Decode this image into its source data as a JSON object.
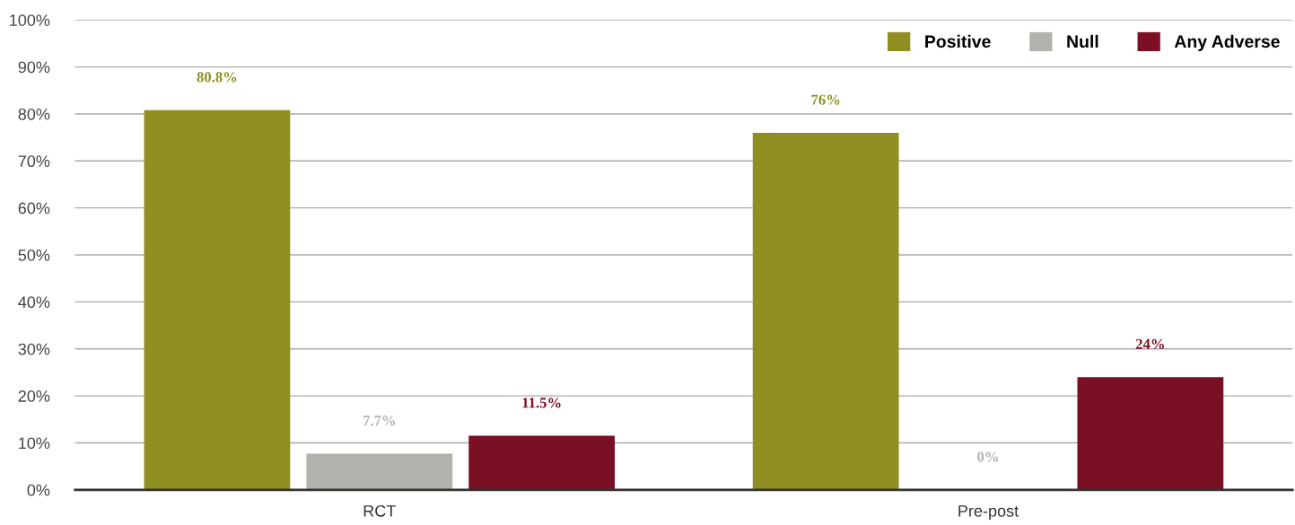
{
  "chart_data": {
    "type": "bar",
    "categories": [
      "RCT",
      "Pre-post"
    ],
    "series": [
      {
        "name": "Positive",
        "color": "#8f8e20",
        "values": [
          80.8,
          76
        ],
        "value_labels": [
          "80.8%",
          "76%"
        ]
      },
      {
        "name": "Null",
        "color": "#b3b1ab",
        "values": [
          7.7,
          0
        ],
        "value_labels": [
          "7.7%",
          "0%"
        ]
      },
      {
        "name": "Any Adverse",
        "color": "#7b1025",
        "values": [
          11.5,
          24
        ],
        "value_labels": [
          "11.5%",
          "24%"
        ]
      }
    ],
    "ylim": [
      0,
      100
    ],
    "yticks": [
      {
        "value": 0,
        "label": "0%"
      },
      {
        "value": 10,
        "label": "10%"
      },
      {
        "value": 20,
        "label": "20%"
      },
      {
        "value": 30,
        "label": "30%"
      },
      {
        "value": 40,
        "label": "40%"
      },
      {
        "value": 50,
        "label": "50%"
      },
      {
        "value": 60,
        "label": "60%"
      },
      {
        "value": 70,
        "label": "70%"
      },
      {
        "value": 80,
        "label": "80%"
      },
      {
        "value": 90,
        "label": "90%"
      },
      {
        "value": 100,
        "label": "100%"
      }
    ],
    "grid": "y",
    "legend": "top right"
  }
}
